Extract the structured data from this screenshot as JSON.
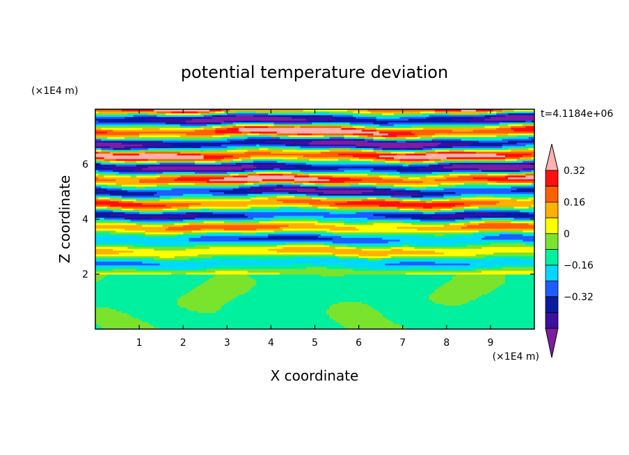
{
  "chart_data": {
    "type": "heatmap",
    "title": "potential temperature deviation",
    "xlabel": "X coordinate",
    "ylabel": "Z coordinate",
    "x_unit": "(×1E4 m)",
    "y_unit": "(×1E4 m)",
    "time_label": "t=4.1184e+06",
    "xlim": [
      0,
      10
    ],
    "ylim": [
      0,
      8
    ],
    "x_ticks": [
      "1",
      "2",
      "3",
      "4",
      "5",
      "6",
      "7",
      "8",
      "9"
    ],
    "y_ticks": [
      "2",
      "4",
      "6"
    ],
    "colorbar": {
      "tick_labels": [
        "0.32",
        "0.16",
        "0",
        "−0.16",
        "−0.32"
      ],
      "tick_values": [
        0.32,
        0.16,
        0,
        -0.16,
        -0.32
      ],
      "level_step": 0.08,
      "range": [
        -0.4,
        0.4
      ],
      "colors": [
        "#7b1fa2",
        "#3b0fa0",
        "#0a1aa0",
        "#1f5cff",
        "#00d8ff",
        "#00f0a0",
        "#7be32c",
        "#ffff00",
        "#ffb000",
        "#ff6000",
        "#ff1010",
        "#ffb0b0"
      ]
    },
    "regions": [
      {
        "z_range": [
          0,
          2
        ],
        "description_values": [
          -0.04,
          0.04
        ]
      },
      {
        "z_range": [
          2,
          4.2
        ],
        "description_values": [
          -0.32,
          0.4
        ]
      },
      {
        "z_range": [
          4.2,
          8
        ],
        "description_values": [
          -0.4,
          0.4
        ]
      }
    ]
  }
}
